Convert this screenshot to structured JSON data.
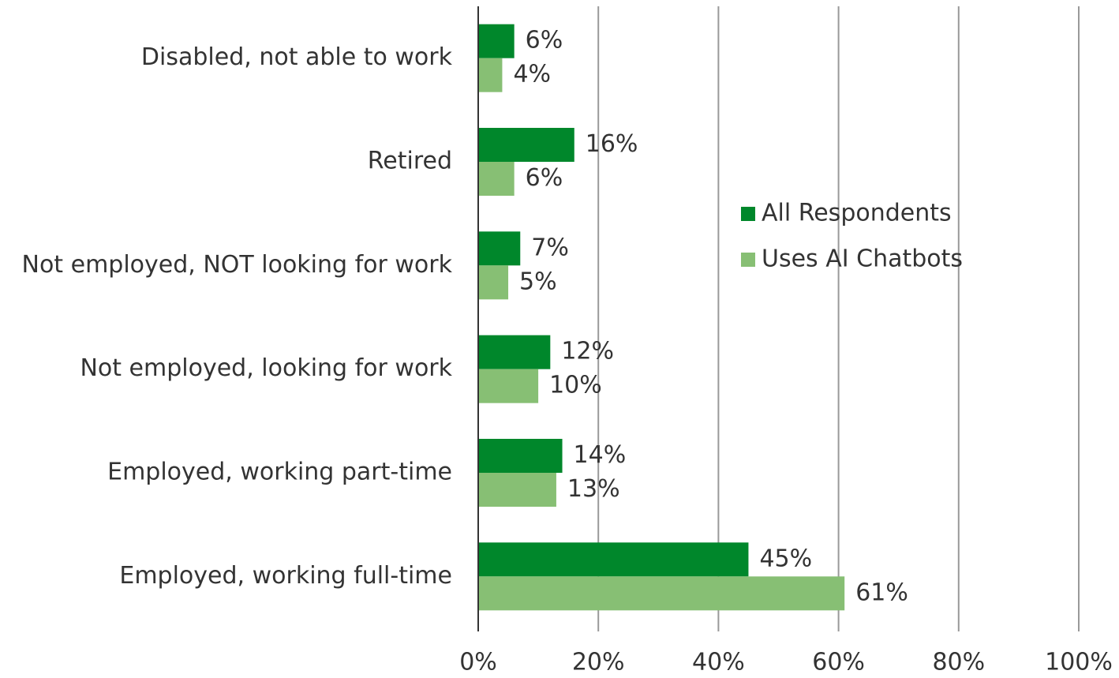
{
  "chart_data": {
    "type": "bar",
    "orientation": "horizontal",
    "categories": [
      "Disabled, not able to work",
      "Retired",
      "Not employed, NOT looking for work",
      "Not employed, looking for work",
      "Employed, working part-time",
      "Employed, working full-time"
    ],
    "series": [
      {
        "name": "All Respondents",
        "color": "#00872b",
        "values": [
          6,
          16,
          7,
          12,
          14,
          45
        ],
        "value_labels": [
          "6%",
          "16%",
          "7%",
          "12%",
          "14%",
          "45%"
        ]
      },
      {
        "name": "Uses AI Chatbots",
        "color": "#87bf74",
        "values": [
          4,
          6,
          5,
          10,
          13,
          61
        ],
        "value_labels": [
          "4%",
          "6%",
          "5%",
          "10%",
          "13%",
          "61%"
        ]
      }
    ],
    "xlim": [
      0,
      100
    ],
    "xticks": [
      {
        "value": 0,
        "label": "0%"
      },
      {
        "value": 20,
        "label": "20%"
      },
      {
        "value": 40,
        "label": "40%"
      },
      {
        "value": 60,
        "label": "60%"
      },
      {
        "value": 80,
        "label": "80%"
      },
      {
        "value": 100,
        "label": "100%"
      }
    ],
    "grid": true,
    "legend": "center-right"
  }
}
